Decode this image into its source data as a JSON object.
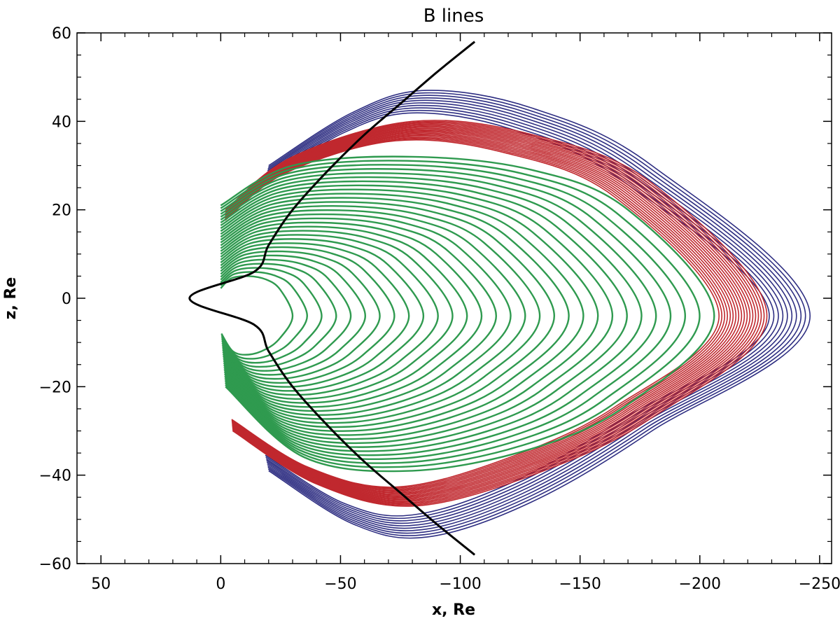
{
  "chart_data": {
    "type": "line",
    "title": "B lines",
    "xlabel": "x, Re",
    "ylabel": "z, Re",
    "xlim": [
      60,
      -255
    ],
    "ylim": [
      -60,
      60
    ],
    "x_ticks": [
      50,
      0,
      -50,
      -100,
      -150,
      -200,
      -250
    ],
    "y_ticks": [
      60,
      40,
      20,
      0,
      -20,
      -40,
      -60
    ],
    "x_tick_labels": [
      "50",
      "0",
      "−50",
      "−100",
      "−150",
      "−200",
      "−250"
    ],
    "y_tick_labels": [
      "60",
      "40",
      "20",
      "0",
      "−20",
      "−40",
      "−60"
    ],
    "grid": false,
    "colors": {
      "magnetopause": "#000000",
      "open_lines": "#2e2e82",
      "boundary_lines": "#c0282e",
      "closed_lines": "#2f9a4f"
    },
    "series": [
      {
        "group": "magnetopause",
        "color": "#000000",
        "points": [
          [
            -106,
            58
          ],
          [
            -90,
            51
          ],
          [
            -75,
            44
          ],
          [
            -60,
            37
          ],
          [
            -45,
            29
          ],
          [
            -30,
            20
          ],
          [
            -20,
            12
          ],
          [
            -14,
            6
          ],
          [
            13,
            0
          ],
          [
            -14,
            -6
          ],
          [
            -20,
            -12
          ],
          [
            -30,
            -20
          ],
          [
            -45,
            -29
          ],
          [
            -60,
            -37
          ],
          [
            -75,
            -44
          ],
          [
            -90,
            -51
          ],
          [
            -106,
            -58
          ]
        ]
      },
      {
        "group": "open_lines",
        "color": "#2e2e82",
        "count": 10,
        "tip_x_range": [
          -229,
          -246
        ],
        "outer_top": [
          [
            -20,
            30
          ],
          [
            -55,
            42
          ],
          [
            -86,
            47
          ],
          [
            -130,
            43
          ],
          [
            -180,
            30
          ],
          [
            -246,
            -4
          ]
        ],
        "outer_bottom": [
          [
            -246,
            -4
          ],
          [
            -180,
            -30
          ],
          [
            -130,
            -46
          ],
          [
            -86,
            -54
          ],
          [
            -55,
            -51
          ],
          [
            -20,
            -39
          ]
        ]
      },
      {
        "group": "boundary_lines",
        "color": "#c0282e",
        "count": 18,
        "tip_x_range": [
          -208,
          -228
        ],
        "outer_top": [
          [
            -2,
            20
          ],
          [
            -30,
            32
          ],
          [
            -80,
            40
          ],
          [
            -130,
            37
          ],
          [
            -180,
            26
          ],
          [
            -228,
            -4
          ]
        ],
        "outer_bottom": [
          [
            -228,
            -4
          ],
          [
            -180,
            -27
          ],
          [
            -130,
            -40
          ],
          [
            -80,
            -47
          ],
          [
            -40,
            -42
          ],
          [
            -5,
            -30
          ]
        ]
      },
      {
        "group": "closed_lines",
        "color": "#2f9a4f",
        "count": 30,
        "tip_x_range": [
          -30,
          -206
        ],
        "outer_top": [
          [
            0,
            21
          ],
          [
            -30,
            30
          ],
          [
            -80,
            32
          ],
          [
            -130,
            29
          ],
          [
            -170,
            20
          ],
          [
            -206,
            -4
          ]
        ],
        "outer_bottom": [
          [
            -206,
            -4
          ],
          [
            -170,
            -24
          ],
          [
            -130,
            -34
          ],
          [
            -80,
            -39
          ],
          [
            -35,
            -36
          ],
          [
            -2,
            -20
          ]
        ]
      }
    ]
  }
}
